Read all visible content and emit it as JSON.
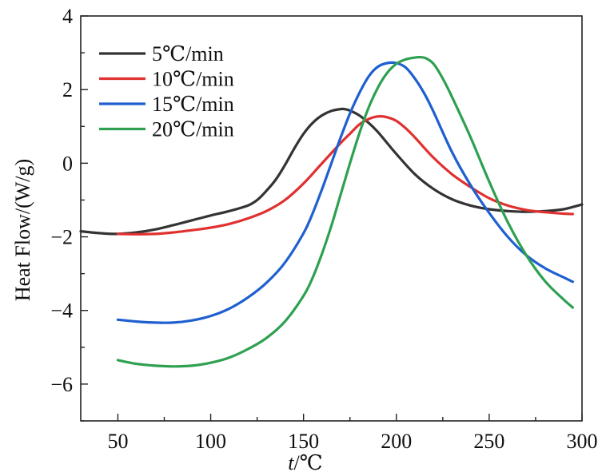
{
  "chart_data": {
    "type": "line",
    "title": "",
    "xlabel_italic": "t",
    "xlabel_unit": "/℃",
    "ylabel": "Heat Flow/(W/g)",
    "xlim": [
      30,
      300
    ],
    "ylim": [
      -7,
      4
    ],
    "xticks": [
      50,
      100,
      150,
      200,
      250,
      300
    ],
    "yticks": [
      4,
      2,
      0,
      -2,
      -4,
      -6
    ],
    "ytick_labels": [
      "4",
      "2",
      "0",
      "−2",
      "−4",
      "−6"
    ],
    "grid": false,
    "legend_position": "top-left",
    "series": [
      {
        "name": "5℃/min",
        "color": "#333333",
        "x": [
          30,
          40,
          50,
          60,
          70,
          80,
          90,
          100,
          110,
          120,
          125,
          130,
          135,
          140,
          145,
          150,
          155,
          160,
          165,
          170,
          172,
          175,
          180,
          185,
          190,
          195,
          200,
          210,
          220,
          230,
          240,
          250,
          260,
          270,
          280,
          290,
          300
        ],
        "y": [
          -1.85,
          -1.9,
          -1.92,
          -1.88,
          -1.8,
          -1.68,
          -1.55,
          -1.42,
          -1.3,
          -1.15,
          -1.0,
          -0.75,
          -0.45,
          -0.05,
          0.4,
          0.8,
          1.1,
          1.3,
          1.42,
          1.47,
          1.47,
          1.43,
          1.3,
          1.1,
          0.85,
          0.55,
          0.25,
          -0.3,
          -0.7,
          -0.98,
          -1.15,
          -1.25,
          -1.3,
          -1.32,
          -1.3,
          -1.25,
          -1.12
        ]
      },
      {
        "name": "10℃/min",
        "color": "#e03030",
        "x": [
          50,
          60,
          70,
          80,
          90,
          100,
          110,
          120,
          130,
          140,
          150,
          160,
          170,
          175,
          180,
          185,
          190,
          195,
          200,
          205,
          210,
          220,
          230,
          240,
          250,
          260,
          270,
          280,
          290,
          295
        ],
        "y": [
          -1.92,
          -1.93,
          -1.92,
          -1.88,
          -1.82,
          -1.75,
          -1.65,
          -1.5,
          -1.3,
          -1.0,
          -0.55,
          0.0,
          0.55,
          0.8,
          1.05,
          1.2,
          1.27,
          1.25,
          1.15,
          0.95,
          0.7,
          0.15,
          -0.3,
          -0.65,
          -0.95,
          -1.15,
          -1.27,
          -1.33,
          -1.37,
          -1.38
        ]
      },
      {
        "name": "15℃/min",
        "color": "#1f5fd0",
        "x": [
          50,
          60,
          70,
          80,
          90,
          100,
          110,
          120,
          130,
          140,
          150,
          155,
          160,
          165,
          170,
          175,
          180,
          185,
          190,
          195,
          200,
          205,
          210,
          215,
          220,
          230,
          240,
          250,
          260,
          270,
          280,
          290,
          295
        ],
        "y": [
          -4.25,
          -4.3,
          -4.33,
          -4.33,
          -4.27,
          -4.15,
          -3.95,
          -3.65,
          -3.25,
          -2.7,
          -1.9,
          -1.35,
          -0.7,
          0.0,
          0.7,
          1.35,
          1.9,
          2.35,
          2.62,
          2.72,
          2.72,
          2.6,
          2.3,
          1.9,
          1.4,
          0.3,
          -0.6,
          -1.35,
          -2.0,
          -2.5,
          -2.85,
          -3.1,
          -3.22
        ]
      },
      {
        "name": "20℃/min",
        "color": "#2ea050",
        "x": [
          50,
          60,
          70,
          80,
          90,
          100,
          110,
          120,
          130,
          140,
          150,
          155,
          160,
          165,
          170,
          175,
          180,
          185,
          190,
          195,
          200,
          205,
          210,
          213,
          216,
          220,
          225,
          230,
          240,
          250,
          260,
          270,
          280,
          290,
          295
        ],
        "y": [
          -5.35,
          -5.45,
          -5.5,
          -5.52,
          -5.5,
          -5.42,
          -5.28,
          -5.05,
          -4.75,
          -4.3,
          -3.6,
          -3.1,
          -2.45,
          -1.7,
          -0.85,
          0.0,
          0.8,
          1.5,
          2.05,
          2.45,
          2.7,
          2.82,
          2.87,
          2.88,
          2.85,
          2.7,
          2.3,
          1.8,
          0.7,
          -0.5,
          -1.6,
          -2.5,
          -3.2,
          -3.7,
          -3.92
        ]
      }
    ]
  }
}
